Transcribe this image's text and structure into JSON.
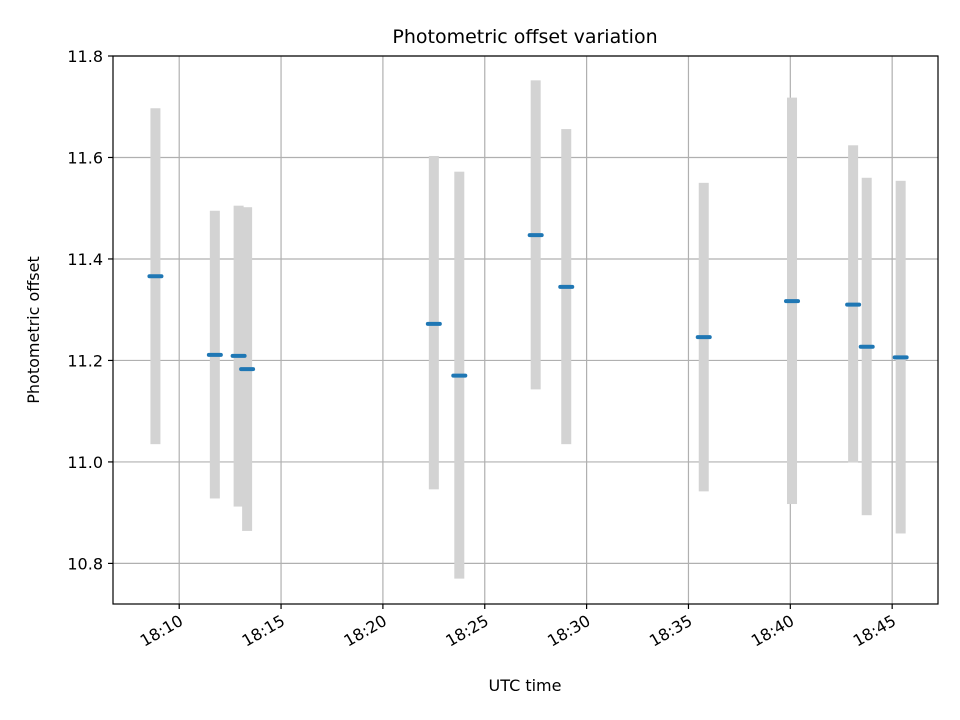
{
  "chart_data": {
    "type": "scatter",
    "title": "Photometric offset variation",
    "xlabel": "UTC time",
    "ylabel": "Photometric offset",
    "grid": true,
    "xlim": [
      "18:06:45",
      "18:47:15"
    ],
    "ylim": [
      10.72,
      11.8
    ],
    "x_ticks": [
      "18:10",
      "18:15",
      "18:20",
      "18:25",
      "18:30",
      "18:35",
      "18:40",
      "18:45"
    ],
    "y_ticks": [
      "10.8",
      "11.0",
      "11.2",
      "11.4",
      "11.6",
      "11.8"
    ],
    "colors": {
      "point": "#1f77b4",
      "error_bar": "#d3d3d3",
      "grid": "#b0b0b0"
    },
    "series": [
      {
        "points": [
          {
            "x": "18:08:50",
            "y": 11.366,
            "y_low": 11.035,
            "y_high": 11.697
          },
          {
            "x": "18:11:45",
            "y": 11.211,
            "y_low": 10.928,
            "y_high": 11.495
          },
          {
            "x": "18:12:55",
            "y": 11.209,
            "y_low": 10.912,
            "y_high": 11.505
          },
          {
            "x": "18:13:20",
            "y": 11.183,
            "y_low": 10.864,
            "y_high": 11.502
          },
          {
            "x": "18:22:30",
            "y": 11.272,
            "y_low": 10.946,
            "y_high": 11.603
          },
          {
            "x": "18:23:45",
            "y": 11.17,
            "y_low": 10.77,
            "y_high": 11.572
          },
          {
            "x": "18:27:30",
            "y": 11.447,
            "y_low": 11.143,
            "y_high": 11.752
          },
          {
            "x": "18:29:00",
            "y": 11.345,
            "y_low": 11.035,
            "y_high": 11.656
          },
          {
            "x": "18:35:45",
            "y": 11.246,
            "y_low": 10.942,
            "y_high": 11.55
          },
          {
            "x": "18:40:05",
            "y": 11.317,
            "y_low": 10.917,
            "y_high": 11.718
          },
          {
            "x": "18:43:05",
            "y": 11.31,
            "y_low": 10.999,
            "y_high": 11.624
          },
          {
            "x": "18:43:45",
            "y": 11.227,
            "y_low": 10.895,
            "y_high": 11.56
          },
          {
            "x": "18:45:25",
            "y": 11.206,
            "y_low": 10.859,
            "y_high": 11.554
          }
        ]
      }
    ]
  }
}
